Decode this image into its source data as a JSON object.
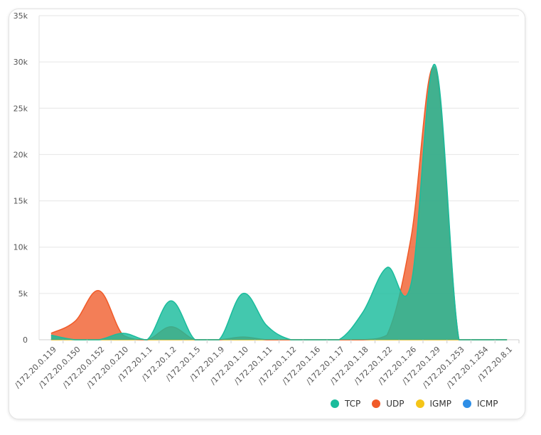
{
  "chart_data": {
    "type": "area",
    "y_ticks": [
      "0",
      "5k",
      "10k",
      "15k",
      "20k",
      "25k",
      "30k",
      "35k"
    ],
    "ylim": [
      0,
      35000
    ],
    "grid": true,
    "legend_placement": "bottom-right",
    "categories": [
      "/172.20.0.119",
      "/172.20.0.150",
      "/172.20.0.152",
      "/172.20.0.210",
      "/172.20.1.1",
      "/172.20.1.2",
      "/172.20.1.5",
      "/172.20.1.9",
      "/172.20.1.10",
      "/172.20.1.11",
      "/172.20.1.12",
      "/172.20.1.16",
      "/172.20.1.17",
      "/172.20.1.18",
      "/172.20.1.22",
      "/172.20.1.26",
      "/172.20.1.29",
      "/172.20.1.253",
      "/172.20.1.254",
      "/172.20.8.1"
    ],
    "series": [
      {
        "name": "TCP",
        "color": "#1abc9c",
        "values": [
          500,
          0,
          0,
          700,
          0,
          4200,
          0,
          0,
          5000,
          1500,
          0,
          0,
          0,
          3000,
          7800,
          6000,
          29700,
          0,
          0,
          0
        ]
      },
      {
        "name": "UDP",
        "color": "#f05a28",
        "values": [
          700,
          2000,
          5300,
          500,
          0,
          1400,
          0,
          0,
          300,
          0,
          0,
          0,
          0,
          0,
          500,
          11000,
          29300,
          0,
          0,
          0
        ]
      },
      {
        "name": "IGMP",
        "color": "#f5c518",
        "values": [
          0,
          0,
          0,
          0,
          0,
          0,
          0,
          0,
          0,
          0,
          0,
          0,
          0,
          0,
          0,
          0,
          0,
          0,
          0,
          0
        ]
      },
      {
        "name": "ICMP",
        "color": "#2e8ee6",
        "values": [
          0,
          0,
          0,
          0,
          0,
          0,
          0,
          0,
          0,
          0,
          0,
          0,
          0,
          0,
          0,
          0,
          0,
          0,
          0,
          0
        ]
      }
    ]
  }
}
